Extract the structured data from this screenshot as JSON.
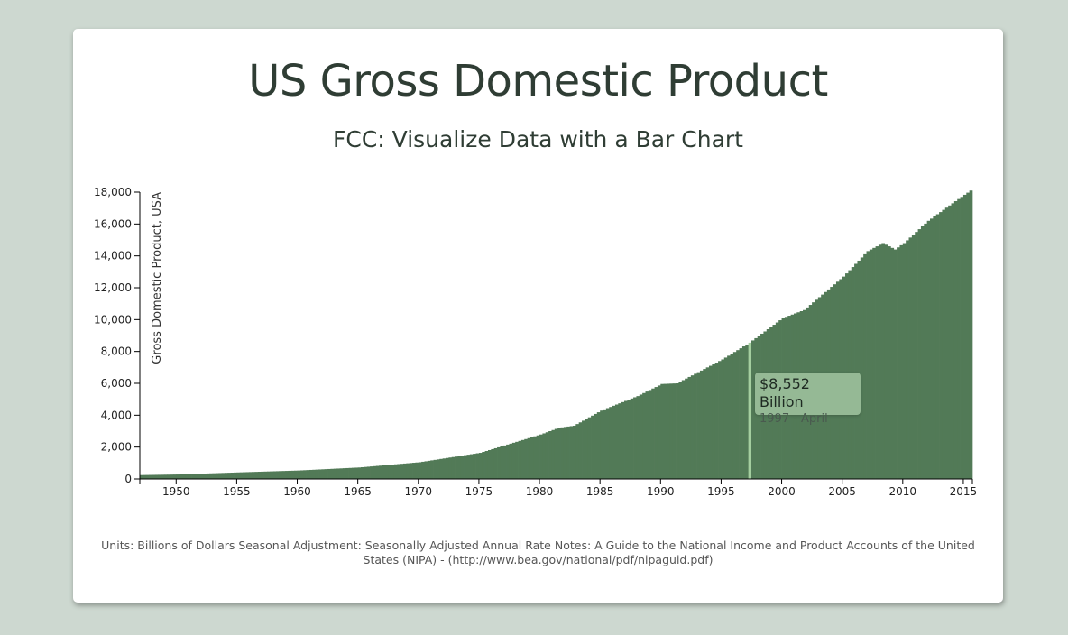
{
  "title": "US Gross Domestic Product",
  "subtitle": "FCC: Visualize Data with a Bar Chart",
  "footnote": "Units: Billions of Dollars Seasonal Adjustment: Seasonally Adjusted Annual Rate Notes: A Guide to the National Income and Product Accounts of the United States (NIPA) - (http://www.bea.gov/national/pdf/nipaguid.pdf)",
  "tooltip": {
    "value": "$8,552 Billion",
    "date": "1997 - April"
  },
  "colors": {
    "bar": "#527a57",
    "highlight": "#a5cfa0",
    "background": "#cdd8d0"
  },
  "chart_data": {
    "type": "bar",
    "ylabel": "Gross Domestic Product, USA",
    "xlabel": "",
    "ylim": [
      0,
      18000
    ],
    "xlim": [
      1947.0,
      2015.75
    ],
    "y_ticks": [
      0,
      2000,
      4000,
      6000,
      8000,
      10000,
      12000,
      14000,
      16000,
      18000
    ],
    "y_tick_labels": [
      "0",
      "2,000",
      "4,000",
      "6,000",
      "8,000",
      "10,000",
      "12,000",
      "14,000",
      "16,000",
      "18,000"
    ],
    "x_ticks": [
      1950,
      1955,
      1960,
      1965,
      1970,
      1975,
      1980,
      1985,
      1990,
      1995,
      2000,
      2005,
      2010,
      2015
    ],
    "x_tick_labels": [
      "1950",
      "1955",
      "1960",
      "1965",
      "1970",
      "1975",
      "1980",
      "1985",
      "1990",
      "1995",
      "2000",
      "2005",
      "2010",
      "2015"
    ],
    "grid": false,
    "frequency": "quarterly",
    "highlighted_point": {
      "date": "1997 - April",
      "value": 8552
    },
    "anchors": [
      {
        "year": 1947.0,
        "value": 243
      },
      {
        "year": 1950,
        "value": 280
      },
      {
        "year": 1955,
        "value": 410
      },
      {
        "year": 1960,
        "value": 530
      },
      {
        "year": 1965,
        "value": 720
      },
      {
        "year": 1970,
        "value": 1050
      },
      {
        "year": 1975,
        "value": 1640
      },
      {
        "year": 1980,
        "value": 2790
      },
      {
        "year": 1981.5,
        "value": 3210
      },
      {
        "year": 1982.75,
        "value": 3340
      },
      {
        "year": 1985,
        "value": 4290
      },
      {
        "year": 1988,
        "value": 5200
      },
      {
        "year": 1990,
        "value": 5960
      },
      {
        "year": 1991.25,
        "value": 6000
      },
      {
        "year": 1995,
        "value": 7500
      },
      {
        "year": 1997.25,
        "value": 8552
      },
      {
        "year": 2000,
        "value": 10100
      },
      {
        "year": 2001.75,
        "value": 10600
      },
      {
        "year": 2005,
        "value": 12700
      },
      {
        "year": 2007,
        "value": 14300
      },
      {
        "year": 2008.25,
        "value": 14800
      },
      {
        "year": 2009.25,
        "value": 14400
      },
      {
        "year": 2010,
        "value": 14800
      },
      {
        "year": 2012,
        "value": 16200
      },
      {
        "year": 2014,
        "value": 17300
      },
      {
        "year": 2015.5,
        "value": 18100
      }
    ]
  }
}
